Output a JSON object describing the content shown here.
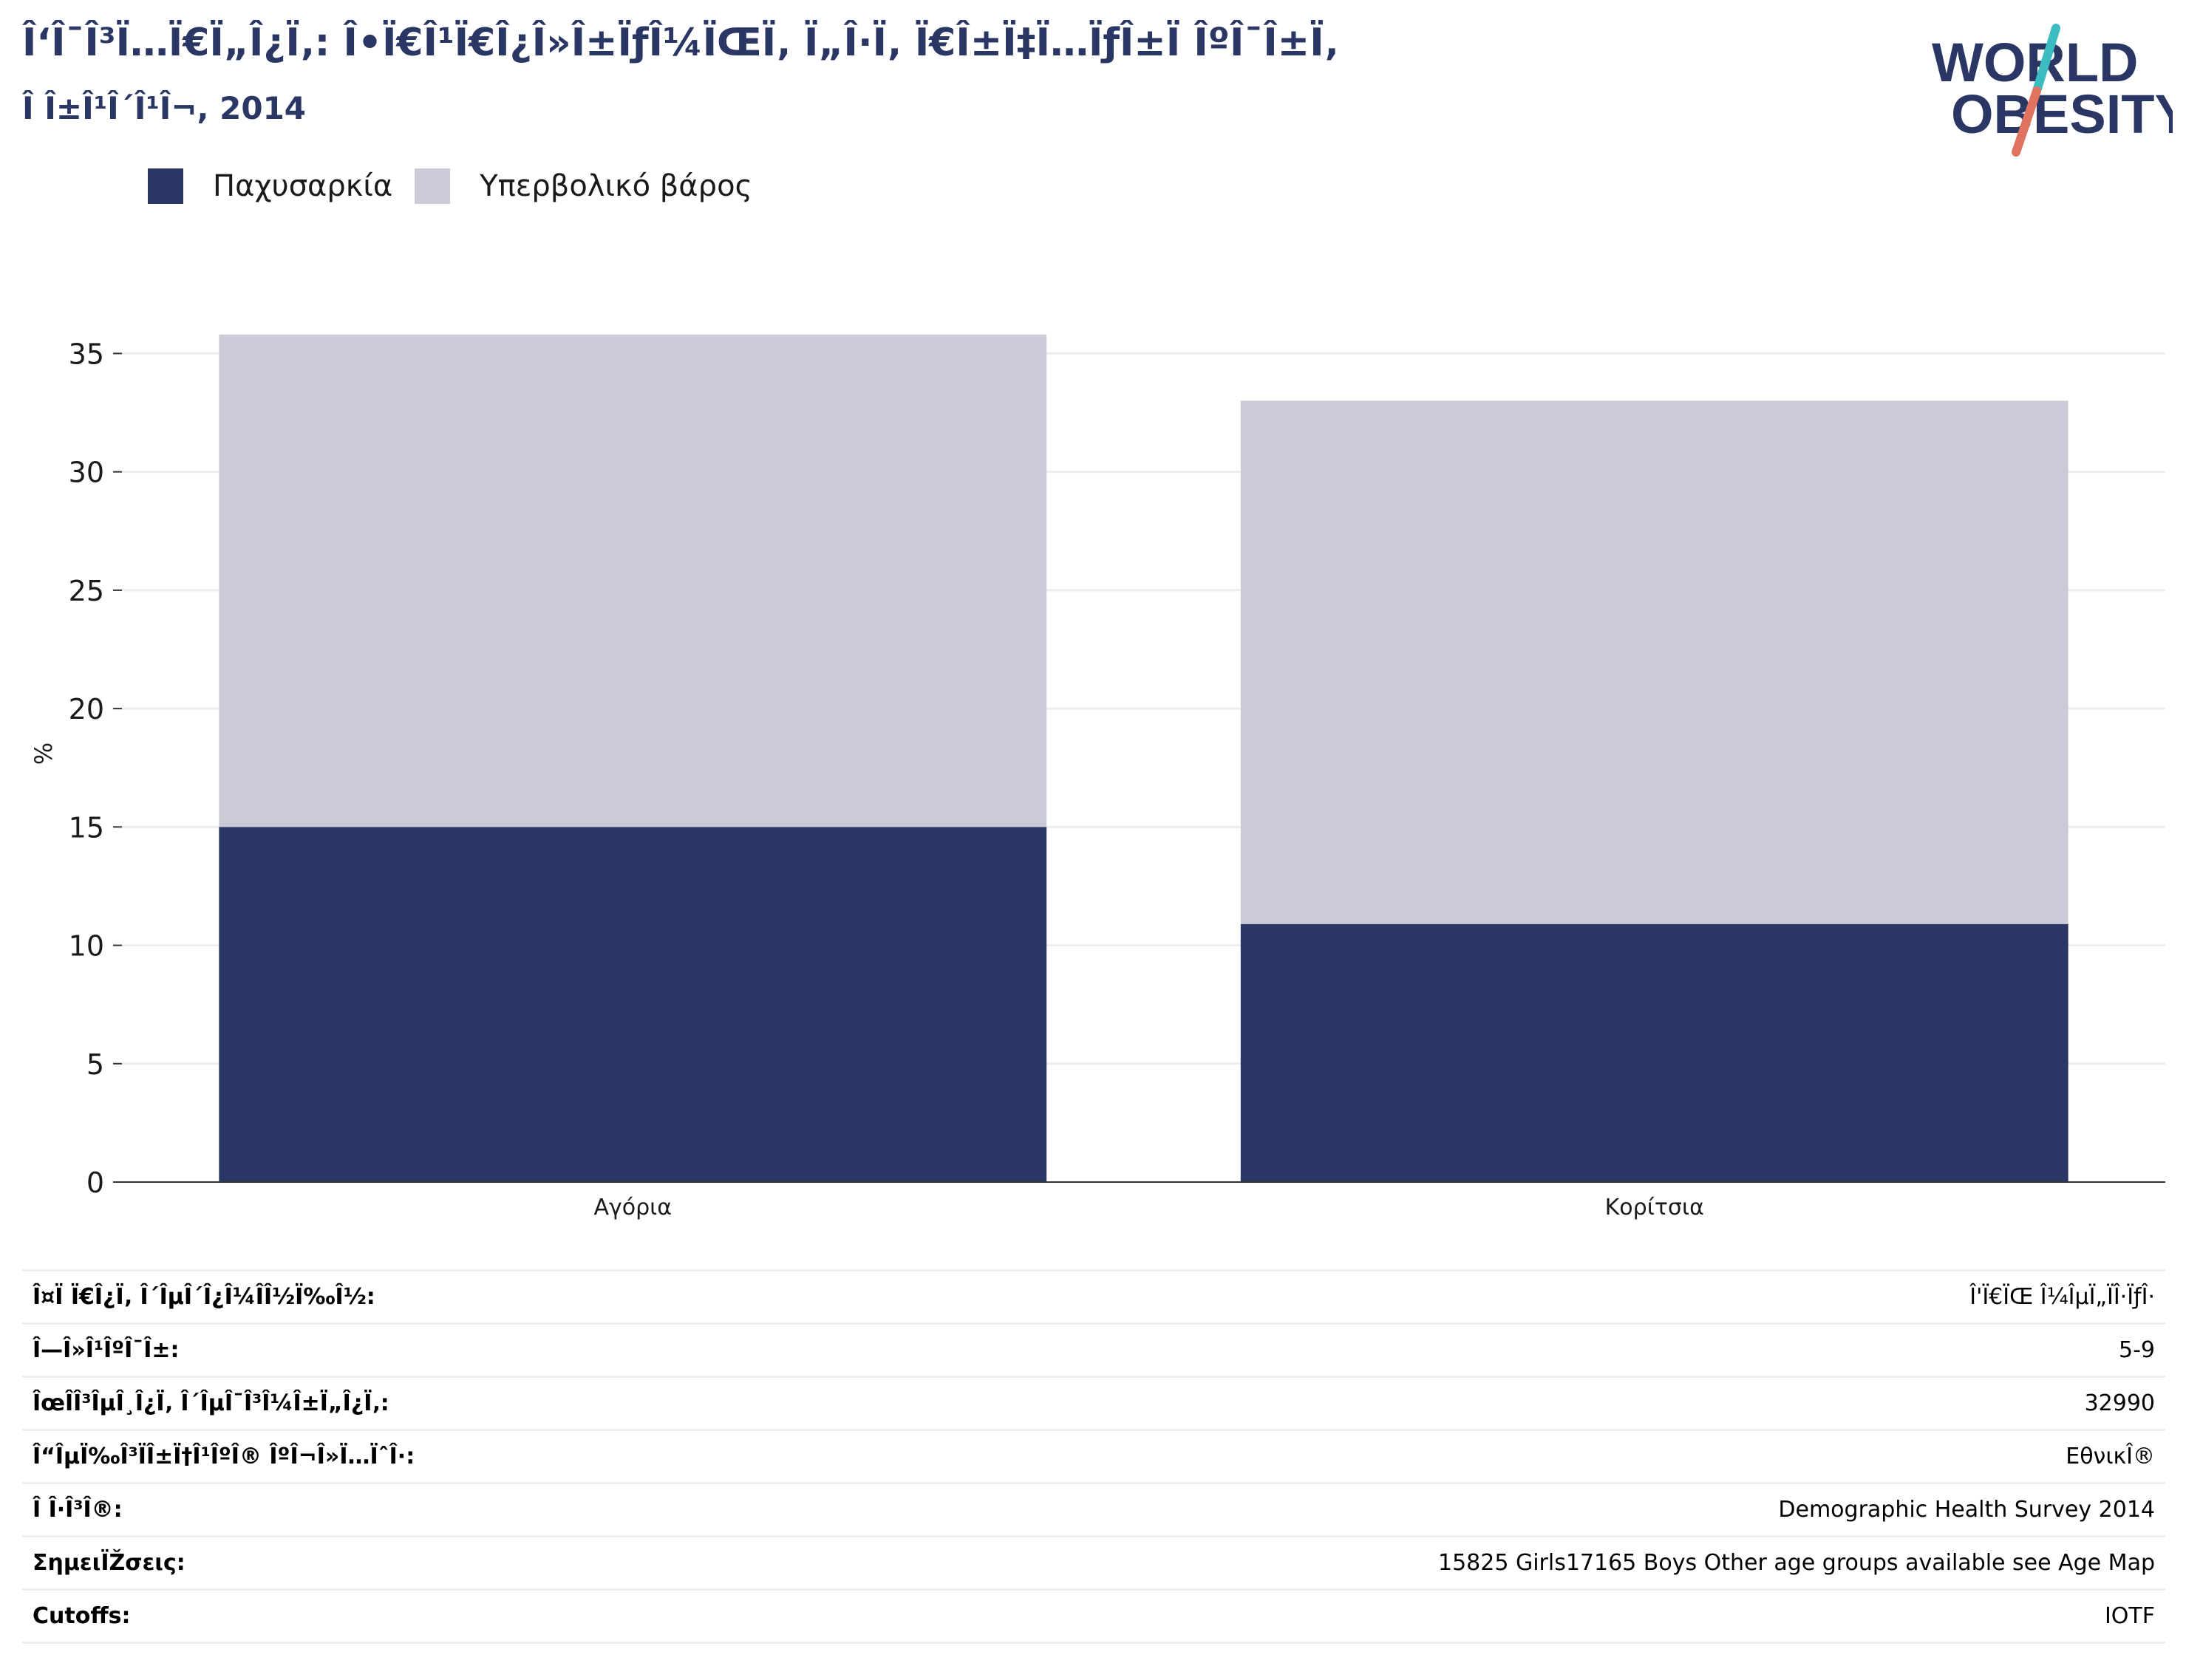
{
  "header": {
    "title": "Î‘Î¯Î³Ï…Ï€Ï„Î¿Ï‚: Î•Ï€Î¹Ï€Î¿Î»Î±ÏƒÎ¼ÏŒÏ‚ Ï„Î·Ï‚ Ï€Î±Ï‡Ï…ÏƒÎ±Ï ÎºÎ¯Î±Ï‚",
    "subtitle": "Î Î±Î¹Î´Î¹Î¬, 2014"
  },
  "logo": {
    "line1": "WORLD",
    "line2": "OBESITY",
    "colors": {
      "text": "#2a3663",
      "slash_top": "#3bbcc0",
      "slash_bottom": "#e0735f"
    }
  },
  "colors": {
    "obesity": "#2a3663",
    "overweight": "#cacbd7",
    "grid": "#ececf1",
    "axis": "#333333"
  },
  "chart_data": {
    "type": "bar",
    "stacked": true,
    "categories": [
      "Αγόρια",
      "Κορίτσια"
    ],
    "series": [
      {
        "name": "Παχυσαρκία",
        "values": [
          15.0,
          10.9
        ]
      },
      {
        "name": "Υπερβολικό βάρος",
        "values": [
          20.8,
          22.1
        ]
      }
    ],
    "ylabel": "%",
    "ylim": [
      0,
      35
    ],
    "yticks": [
      0,
      5,
      10,
      15,
      20,
      25,
      30,
      35
    ],
    "grid": true,
    "legend": "top-left"
  },
  "info": [
    {
      "label": "Î¤Ï Ï€Î¿Ï‚ Î´ÎµÎ´Î¿Î¼Î­Î½Ï‰Î½:",
      "value": "Î'Ï€ÏŒ Î¼ÎµÏ„ÏÎ·ÏƒÎ·"
    },
    {
      "label": "Î—Î»Î¹ÎºÎ¯Î±:",
      "value": "5-9"
    },
    {
      "label": "ÎœÎ­Î³ÎµÎ¸Î¿Ï‚ Î´ÎµÎ¯Î³Î¼Î±Ï„Î¿Ï‚:",
      "value": "32990"
    },
    {
      "label": "Î“ÎµÏ‰Î³ÏÎ±Ï†Î¹ÎºÎ® ÎºÎ¬Î»Ï…ÏˆÎ·:",
      "value": "ΕθνικÎ®"
    },
    {
      "label": "Î Î·Î³Î®:",
      "value": "Demographic Health Survey 2014"
    },
    {
      "label": "ΣημειÏŽσεις:",
      "value": "15825 Girls17165 Boys Other age groups available see Age Map"
    },
    {
      "label": "Cutoffs:",
      "value": "IOTF"
    }
  ]
}
